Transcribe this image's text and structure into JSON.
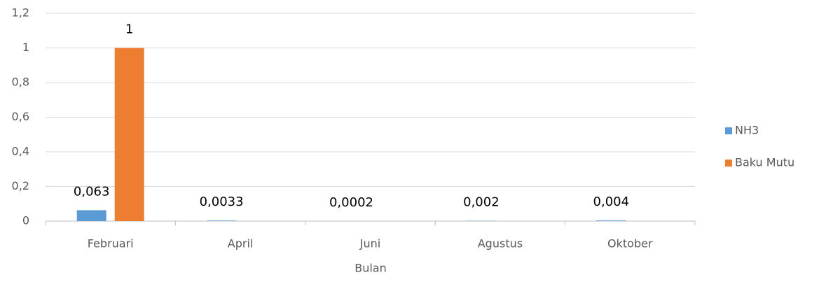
{
  "chart_data": {
    "type": "bar",
    "x_label": "Bulan",
    "categories": [
      "Februari",
      "April",
      "Juni",
      "Agustus",
      "Oktober"
    ],
    "series": [
      {
        "name": "NH3",
        "color": "#5b9bd5",
        "values": [
          0.063,
          0.0033,
          0.0002,
          0.002,
          0.004
        ],
        "value_labels": [
          "0,063",
          "0,0033",
          "0,0002",
          "0,002",
          "0,004"
        ]
      },
      {
        "name": "Baku Mutu",
        "color": "#ed7d31",
        "values": [
          1,
          null,
          null,
          null,
          null
        ],
        "value_labels": [
          "1",
          null,
          null,
          null,
          null
        ]
      }
    ],
    "ylim": [
      0,
      1.2
    ],
    "yticks": [
      0,
      {
        "value": 0.2,
        "label": "0,2"
      },
      {
        "value": 0.4,
        "label": "0,4"
      },
      {
        "value": 0.6,
        "label": "0,6"
      },
      {
        "value": 0.8,
        "label": "0,8"
      },
      1,
      {
        "value": 1.2,
        "label": "1,2"
      }
    ],
    "grid": true,
    "legend": "right"
  }
}
